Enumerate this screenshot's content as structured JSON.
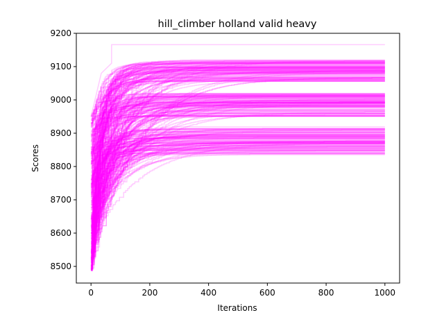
{
  "chart_data": {
    "type": "line",
    "title": "hill_climber holland valid heavy",
    "xlabel": "Iterations",
    "ylabel": "Scores",
    "xlim": [
      -50,
      1050
    ],
    "ylim": [
      8450,
      9200
    ],
    "xticks": [
      0,
      200,
      400,
      600,
      800,
      1000
    ],
    "yticks": [
      8500,
      8600,
      8700,
      8800,
      8900,
      9000,
      9100,
      9200
    ],
    "series_color": "#ff00ff",
    "series_opacity": 0.2,
    "grid": false,
    "legend": "none",
    "series_count_approx": 300,
    "start_score_range": [
      8487,
      8960
    ],
    "final_score_plateaus": [
      {
        "range": [
          9055,
          9120
        ],
        "note": "upper cluster"
      },
      {
        "range": [
          8950,
          9020
        ],
        "note": "middle cluster"
      },
      {
        "range": [
          8835,
          8920
        ],
        "note": "lower cluster"
      }
    ],
    "outlier_max": {
      "score": 9166,
      "reached_at_iteration": 70
    },
    "x_end": 1000
  }
}
